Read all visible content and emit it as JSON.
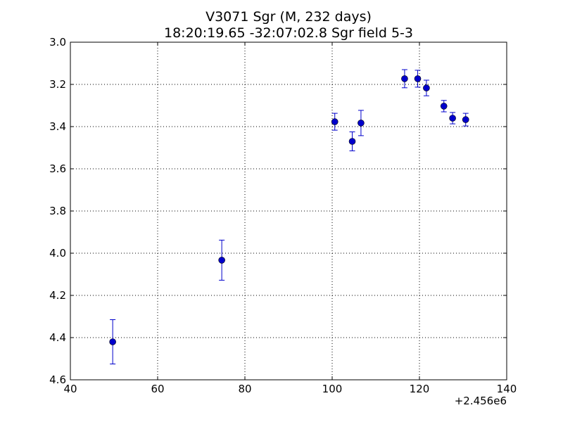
{
  "chart_data": {
    "type": "scatter",
    "title_line1": "V3071 Sgr  (M, 232 days)",
    "title_line2": "18:20:19.65 -32:07:02.8 Sgr field 5-3",
    "xlabel": "",
    "ylabel": "",
    "x_offset_label": "+2.456e6",
    "xlim": [
      40,
      140
    ],
    "ylim": [
      4.6,
      3.0
    ],
    "y_inverted": true,
    "grid": true,
    "x_ticks": [
      40,
      60,
      80,
      100,
      120,
      140
    ],
    "x_tick_labels": [
      "40",
      "60",
      "80",
      "100",
      "120",
      "140"
    ],
    "y_ticks": [
      3.0,
      3.2,
      3.4,
      3.6,
      3.8,
      4.0,
      4.2,
      4.4,
      4.6
    ],
    "y_tick_labels": [
      "3.0",
      "3.2",
      "3.4",
      "3.6",
      "3.8",
      "4.0",
      "4.2",
      "4.4",
      "4.6"
    ],
    "marker_color": "#0000cc",
    "points": [
      {
        "x": 49.7,
        "y": 4.42,
        "err": 0.105
      },
      {
        "x": 74.7,
        "y": 4.033,
        "err": 0.095
      },
      {
        "x": 100.6,
        "y": 3.377,
        "err": 0.04
      },
      {
        "x": 104.6,
        "y": 3.47,
        "err": 0.045
      },
      {
        "x": 106.6,
        "y": 3.383,
        "err": 0.06
      },
      {
        "x": 116.6,
        "y": 3.173,
        "err": 0.043
      },
      {
        "x": 119.6,
        "y": 3.173,
        "err": 0.04
      },
      {
        "x": 121.6,
        "y": 3.217,
        "err": 0.037
      },
      {
        "x": 125.6,
        "y": 3.303,
        "err": 0.027
      },
      {
        "x": 127.6,
        "y": 3.36,
        "err": 0.027
      },
      {
        "x": 130.6,
        "y": 3.367,
        "err": 0.03
      }
    ]
  }
}
